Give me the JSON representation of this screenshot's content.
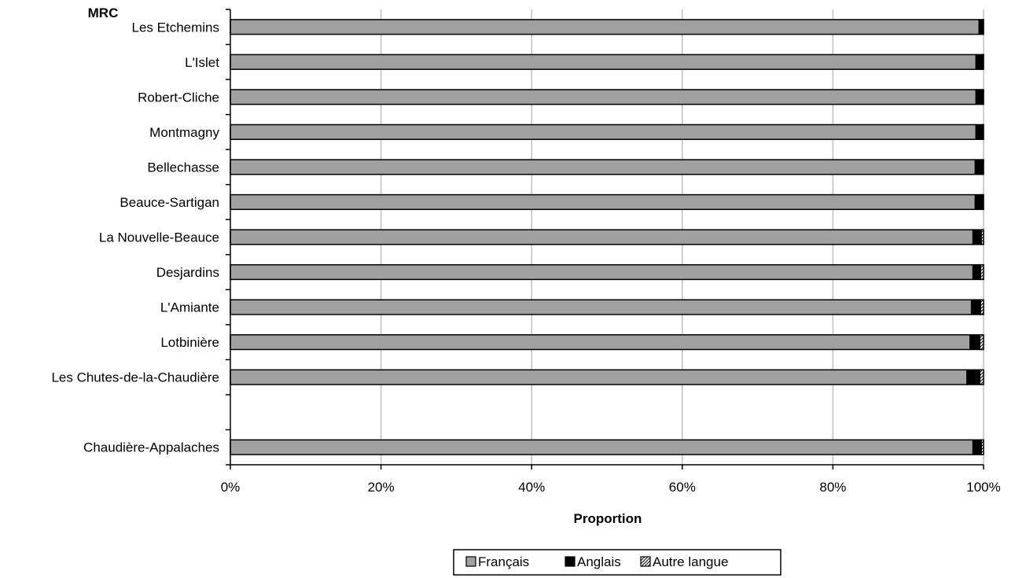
{
  "chart_data": {
    "type": "bar",
    "orientation": "horizontal",
    "stacked": "percent",
    "ylabel": "MRC",
    "xlabel": "Proportion",
    "xlim": [
      0,
      100
    ],
    "x_ticks": [
      "0%",
      "20%",
      "40%",
      "60%",
      "80%",
      "100%"
    ],
    "grid": "vertical",
    "legend_position": "bottom",
    "categories": [
      "Les Etchemins",
      "L'Islet",
      "Robert-Cliche",
      "Montmagny",
      "Bellechasse",
      "Beauce-Sartigan",
      "La Nouvelle-Beauce",
      "Desjardins",
      "L'Amiante",
      "Lotbinière",
      "Les Chutes-de-la-Chaudière",
      "",
      "Chaudière-Appalaches"
    ],
    "series": [
      {
        "name": "Français",
        "color": "#a0a0a0",
        "pattern": "solid",
        "values": [
          99.4,
          99.0,
          99.0,
          99.0,
          98.9,
          98.9,
          98.6,
          98.6,
          98.4,
          98.2,
          97.8,
          null,
          98.6
        ]
      },
      {
        "name": "Anglais",
        "color": "#000000",
        "pattern": "solid",
        "values": [
          0.5,
          0.9,
          0.9,
          0.9,
          1.0,
          1.0,
          1.1,
          1.0,
          1.2,
          1.3,
          1.7,
          null,
          1.1
        ]
      },
      {
        "name": "Autre langue",
        "color": "#ffffff",
        "pattern": "hatch",
        "values": [
          0.1,
          0.1,
          0.1,
          0.1,
          0.1,
          0.1,
          0.3,
          0.4,
          0.4,
          0.5,
          0.5,
          null,
          0.3
        ]
      }
    ]
  }
}
